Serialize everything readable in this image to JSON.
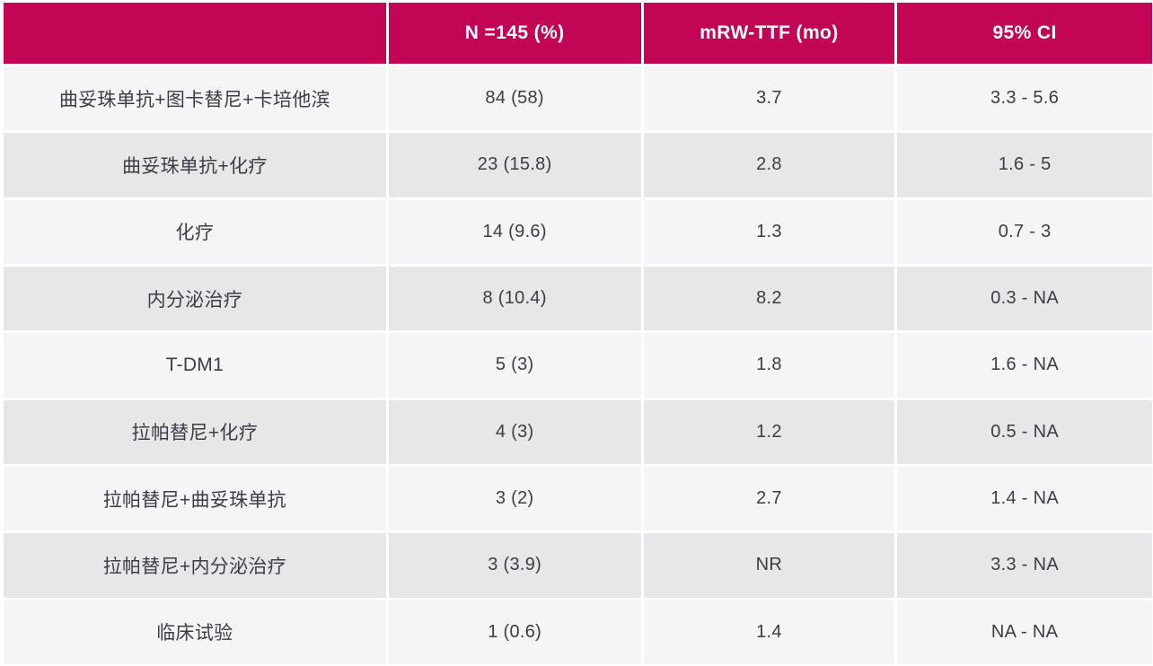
{
  "chart_data": {
    "type": "table",
    "title": "",
    "columns": [
      "",
      "N =145 (%)",
      "mRW-TTF (mo)",
      "95% CI"
    ],
    "rows": [
      {
        "therapy": "曲妥珠单抗+图卡替尼+卡培他滨",
        "n_pct": "84 (58)",
        "mrw_ttf_mo": "3.7",
        "ci_95": "3.3 - 5.6"
      },
      {
        "therapy": "曲妥珠单抗+化疗",
        "n_pct": "23 (15.8)",
        "mrw_ttf_mo": "2.8",
        "ci_95": "1.6 - 5"
      },
      {
        "therapy": "化疗",
        "n_pct": "14 (9.6)",
        "mrw_ttf_mo": "1.3",
        "ci_95": "0.7 - 3"
      },
      {
        "therapy": "内分泌治疗",
        "n_pct": "8 (10.4)",
        "mrw_ttf_mo": "8.2",
        "ci_95": "0.3 - NA"
      },
      {
        "therapy": "T-DM1",
        "n_pct": "5 (3)",
        "mrw_ttf_mo": "1.8",
        "ci_95": "1.6 - NA"
      },
      {
        "therapy": "拉帕替尼+化疗",
        "n_pct": "4 (3)",
        "mrw_ttf_mo": "1.2",
        "ci_95": "0.5 - NA"
      },
      {
        "therapy": "拉帕替尼+曲妥珠单抗",
        "n_pct": "3 (2)",
        "mrw_ttf_mo": "2.7",
        "ci_95": "1.4 - NA"
      },
      {
        "therapy": "拉帕替尼+内分泌治疗",
        "n_pct": "3 (3.9)",
        "mrw_ttf_mo": "NR",
        "ci_95": "3.3 - NA"
      },
      {
        "therapy": "临床试验",
        "n_pct": "1 (0.6)",
        "mrw_ttf_mo": "1.4",
        "ci_95": "NA - NA"
      }
    ],
    "layout": {
      "header_background": "#c30556",
      "header_text_color": "#ffffff",
      "row_odd_background": "#f5f5f7",
      "row_even_background": "#e7e7e9",
      "body_text_color": "#3c3c46",
      "grid_line_color": "#ffffff"
    }
  }
}
